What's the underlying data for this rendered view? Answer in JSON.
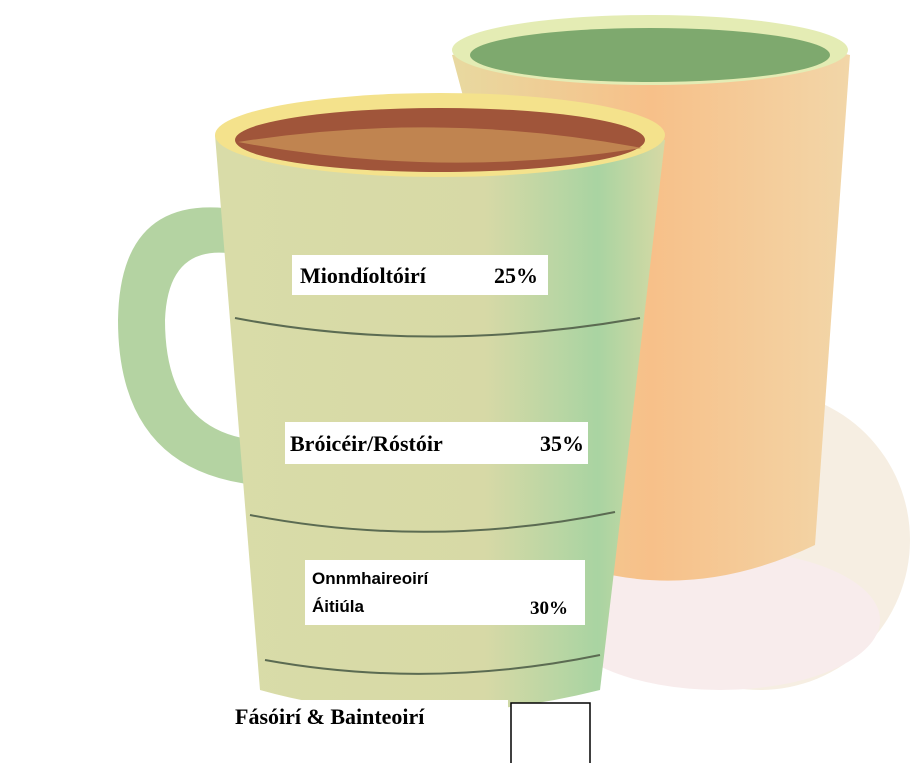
{
  "segments": [
    {
      "name": "Miondíoltóirí",
      "value": "25%"
    },
    {
      "name": "Bróicéir/Róstóir",
      "value": "35%"
    },
    {
      "name_lines": [
        "Onnmhaireoirí",
        "Áitiúla"
      ],
      "value": "30%"
    },
    {
      "name": "Fásóirí & Bainteoirí"
    }
  ]
}
